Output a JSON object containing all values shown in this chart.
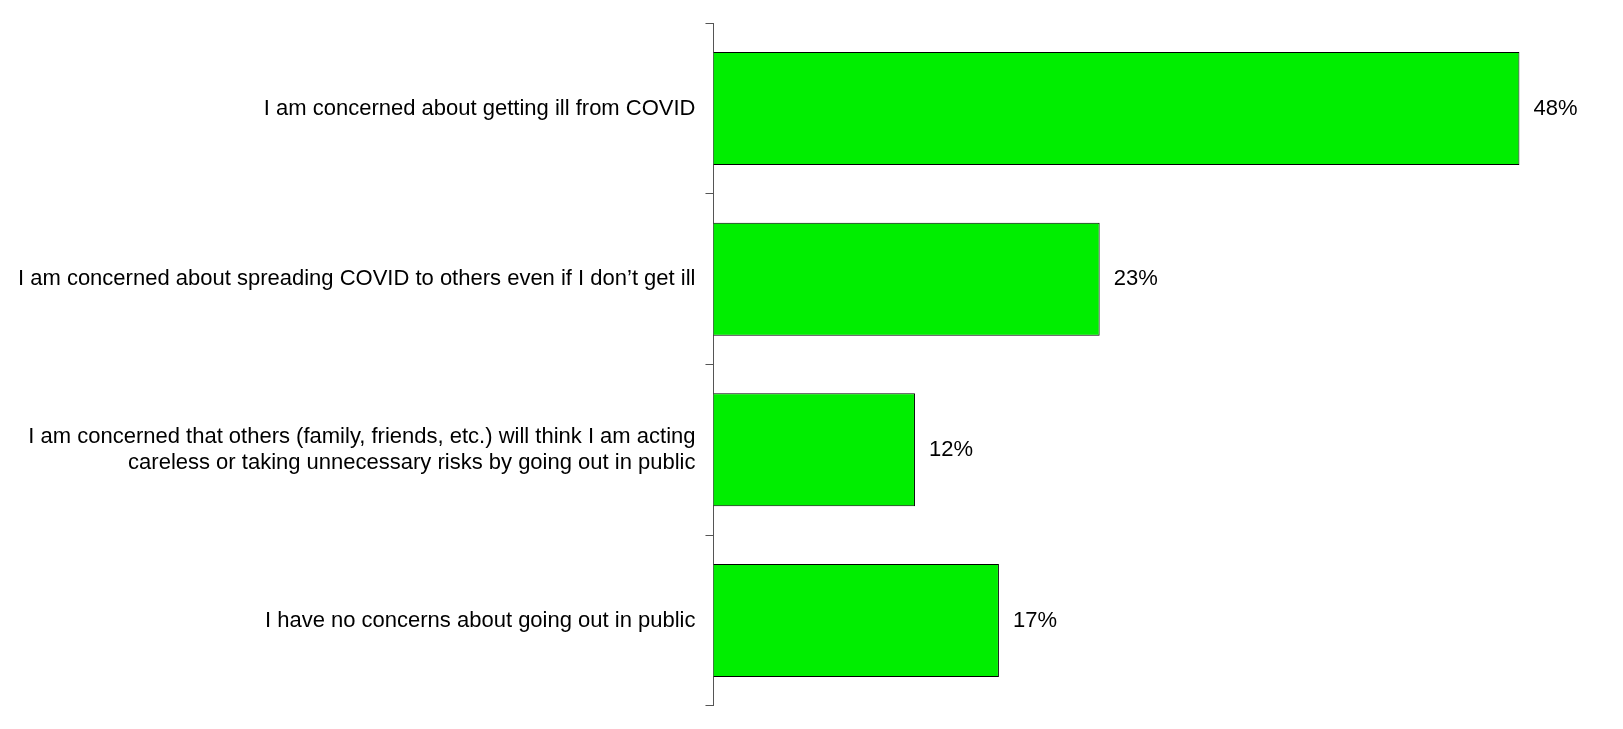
{
  "chart_data": {
    "type": "bar",
    "orientation": "horizontal",
    "categories": [
      "I am concerned about getting ill from COVID",
      "I am concerned about spreading COVID to others even if I don’t get ill",
      "I am concerned that others (family, friends, etc.) will think I am acting careless or taking unnecessary risks by going out in public",
      "I have no concerns about going out in public"
    ],
    "values": [
      48,
      23,
      12,
      17
    ],
    "color": "#00ee00",
    "value_labels": [
      "48%",
      "23%",
      "12%",
      "17%"
    ],
    "grid": false,
    "legend": false
  }
}
